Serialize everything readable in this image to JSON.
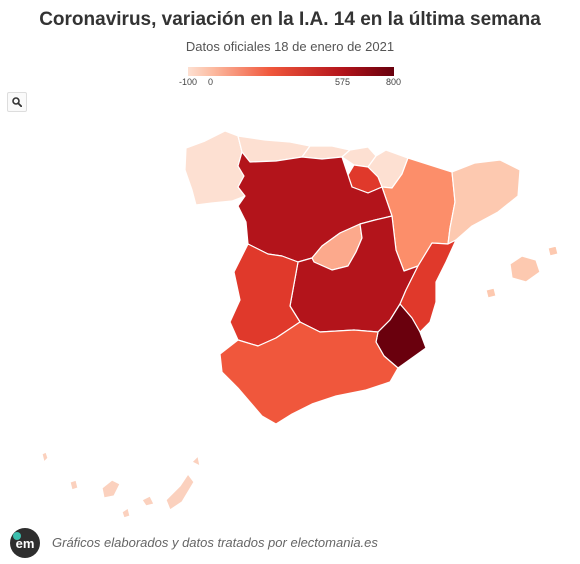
{
  "header": {
    "title": "Coronavirus, variación en la I.A. 14 en la última semana",
    "subtitle": "Datos oficiales 18 de enero de 2021"
  },
  "legend": {
    "min": -100,
    "max": 800,
    "ticks": [
      {
        "value": -100,
        "label": "-100"
      },
      {
        "value": 0,
        "label": "0"
      },
      {
        "value": 575,
        "label": "575"
      },
      {
        "value": 800,
        "label": "800"
      }
    ],
    "colors": [
      "#fde0d2",
      "#fcbba1",
      "#fb6a4a",
      "#cb181d",
      "#a50f15",
      "#67000d"
    ]
  },
  "toolbar": {
    "search_icon": "search-icon"
  },
  "map": {
    "regions": [
      {
        "id": "galicia",
        "fill": "#fde0d2"
      },
      {
        "id": "asturias",
        "fill": "#fde0d2"
      },
      {
        "id": "cantabria",
        "fill": "#fde0d2"
      },
      {
        "id": "pais-vasco",
        "fill": "#fde0d2"
      },
      {
        "id": "navarra",
        "fill": "#fde0d2"
      },
      {
        "id": "la-rioja",
        "fill": "#e0392b"
      },
      {
        "id": "aragon",
        "fill": "#fc8e6a"
      },
      {
        "id": "cataluna",
        "fill": "#fdc9b0"
      },
      {
        "id": "castilla-y-leon",
        "fill": "#b3141b"
      },
      {
        "id": "madrid",
        "fill": "#fca98c"
      },
      {
        "id": "castilla-la-mancha",
        "fill": "#b3141b"
      },
      {
        "id": "extremadura",
        "fill": "#e0392b"
      },
      {
        "id": "comunidad-valenciana",
        "fill": "#e0392b"
      },
      {
        "id": "murcia",
        "fill": "#6a000d"
      },
      {
        "id": "andalucia",
        "fill": "#f0573c"
      },
      {
        "id": "baleares",
        "fill": "#fdc9b0"
      },
      {
        "id": "canarias",
        "fill": "#fbd1be"
      },
      {
        "id": "ceuta",
        "fill": "#fde0d2"
      },
      {
        "id": "melilla",
        "fill": "#fde0d2"
      }
    ]
  },
  "footer": {
    "logo_text": "em",
    "credit": "Gráficos elaborados y datos tratados por electomania.es"
  }
}
